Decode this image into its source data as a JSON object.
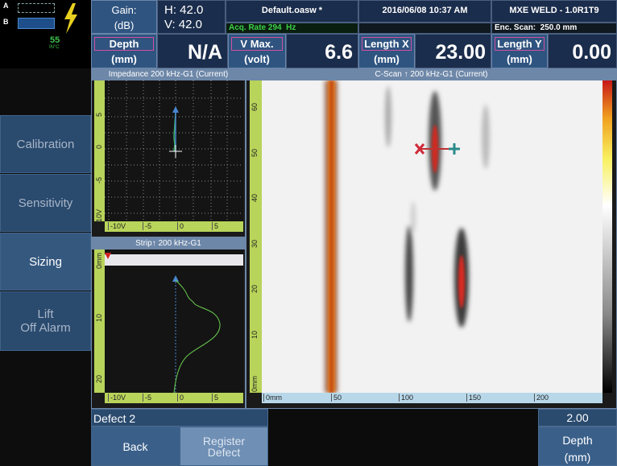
{
  "status": {
    "channel_a": "A",
    "channel_b": "B",
    "temperature": "55",
    "temperature_unit": "IN°C"
  },
  "menu": [
    "Calibration",
    "Sensitivity",
    "Sizing",
    "Lift\nOff Alarm"
  ],
  "header": {
    "gain_label": "Gain:",
    "gain_unit": "(dB)",
    "gain_h": "H: 42.0",
    "gain_v": "V: 42.0",
    "file": "Default.oasw *",
    "acq_rate": "Acq. Rate 294  Hz",
    "datetime": "2016/06/08 10:37 AM",
    "probe": "MXE WELD - 1.0R1T9",
    "enc_scan": "Enc. Scan:  250.0 mm"
  },
  "readings": [
    {
      "label": "Depth",
      "unit": "(mm)",
      "value": "N/A"
    },
    {
      "label": "V Max.",
      "unit": "(volt)",
      "value": "6.6"
    },
    {
      "label": "Length X",
      "unit": "(mm)",
      "value": "23.00"
    },
    {
      "label": "Length Y",
      "unit": "(mm)",
      "value": "0.00"
    }
  ],
  "impedance": {
    "title": "Impedance 200 kHz-G1 (Current)",
    "y_ticks": [
      "5",
      "0",
      "-5",
      "-10V"
    ],
    "x_ticks": [
      "-10V",
      "-5",
      "0",
      "5"
    ]
  },
  "strip": {
    "title": "Strip↑ 200 kHz-G1",
    "y_ticks": [
      "0mm",
      "10",
      "20"
    ],
    "x_ticks": [
      "-10V",
      "-5",
      "0",
      "5"
    ]
  },
  "cscan": {
    "title": "C-Scan ↑ 200 kHz-G1 (Current)",
    "y_ticks": [
      "60",
      "50",
      "40",
      "30",
      "20",
      "10",
      "0mm"
    ],
    "x_ticks": [
      "0mm",
      "50",
      "100",
      "150",
      "200"
    ]
  },
  "footer": {
    "defect": "Defect 2",
    "back": "Back",
    "register": "Register\nDefect",
    "value": "2.00",
    "param": "Depth",
    "param_unit": "(mm)"
  }
}
